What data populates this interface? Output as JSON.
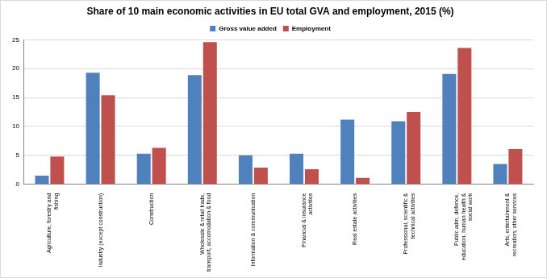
{
  "chart_data": {
    "type": "bar",
    "title": "Share of 10 main economic activities in EU total GVA and employment, 2015 (%)",
    "categories": [
      "Agriculture, forestry and fishing",
      "Industry (except construction)",
      "Construction",
      "Wholesale & retail trade, transport, accomodation & food",
      "Information & communication",
      "Financial & insurance activities",
      "Real estate activities",
      "Professional, scientific & technical activities",
      "Public adm, defence, education, human health & social work",
      "Arts, entertainment & recreation; other services"
    ],
    "series": [
      {
        "name": "Gross value added",
        "color": "#4f81bd",
        "values": [
          1.5,
          19.3,
          5.3,
          18.9,
          5.0,
          5.3,
          11.2,
          10.9,
          19.1,
          3.5
        ]
      },
      {
        "name": "Employment",
        "color": "#c0504d",
        "values": [
          4.8,
          15.4,
          6.3,
          24.6,
          2.9,
          2.6,
          1.1,
          12.5,
          23.6,
          6.1
        ]
      }
    ],
    "ylim": [
      0,
      25
    ],
    "yticks": [
      0,
      5,
      10,
      15,
      20,
      25
    ],
    "grid": true,
    "legend": "top"
  }
}
